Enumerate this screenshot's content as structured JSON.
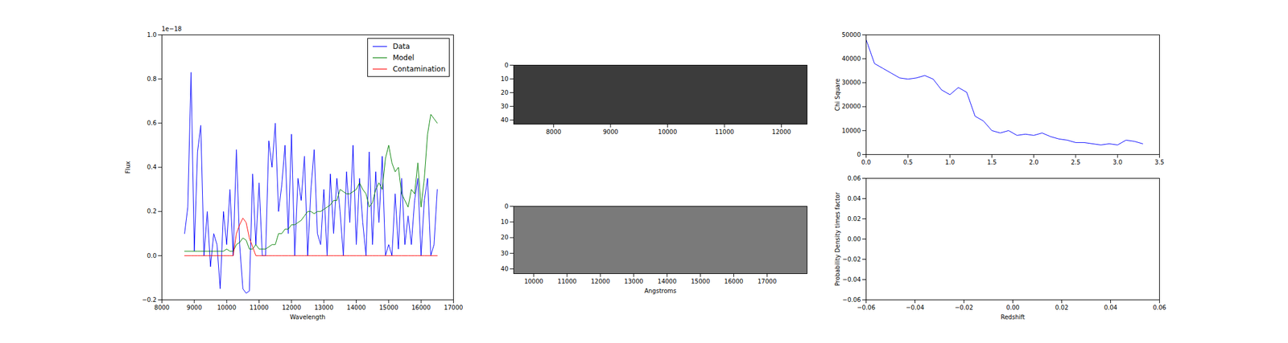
{
  "chart_data": [
    {
      "type": "line",
      "xlabel": "Wavelength",
      "ylabel": "Flux",
      "annotation": "1e−18",
      "legend": "upper right",
      "xlim": [
        8000,
        17000
      ],
      "ylim": [
        -0.2,
        1.0
      ],
      "xticks": [
        8000,
        9000,
        10000,
        11000,
        12000,
        13000,
        14000,
        15000,
        16000,
        17000
      ],
      "yticks": [
        {
          "value": -0.2,
          "label": "−0.2"
        },
        {
          "value": 0,
          "label": "0.0"
        },
        0.2,
        0.4,
        0.6,
        0.8,
        {
          "value": 1.0,
          "label": "1.0"
        }
      ],
      "x": [
        8700,
        8800,
        8900,
        9000,
        9100,
        9200,
        9300,
        9400,
        9500,
        9600,
        9700,
        9800,
        9900,
        10000,
        10100,
        10200,
        10300,
        10400,
        10500,
        10600,
        10700,
        10800,
        10900,
        11000,
        11100,
        11200,
        11300,
        11400,
        11500,
        11600,
        11700,
        11800,
        11900,
        12000,
        12100,
        12200,
        12300,
        12400,
        12500,
        12600,
        12700,
        12800,
        12900,
        13000,
        13100,
        13200,
        13300,
        13400,
        13500,
        13600,
        13700,
        13800,
        13900,
        14000,
        14100,
        14200,
        14300,
        14400,
        14500,
        14600,
        14700,
        14800,
        14900,
        15000,
        15100,
        15200,
        15300,
        15400,
        15500,
        15600,
        15700,
        15800,
        15900,
        16000,
        16100,
        16200,
        16300,
        16400,
        16500
      ],
      "series": [
        {
          "name": "Data",
          "color": "#0000ff",
          "values": [
            0.1,
            0.22,
            0.83,
            0.02,
            0.47,
            0.59,
            0.0,
            0.2,
            -0.05,
            0.1,
            0.05,
            -0.15,
            0.2,
            0.05,
            0.3,
            0.0,
            0.48,
            0.05,
            -0.15,
            -0.17,
            -0.16,
            0.37,
            0.05,
            0.33,
            0.0,
            0.0,
            0.52,
            0.4,
            0.6,
            0.2,
            0.32,
            0.5,
            0.1,
            0.55,
            0.0,
            0.35,
            0.25,
            0.45,
            0.0,
            0.3,
            0.48,
            0.1,
            0.05,
            0.3,
            0.0,
            0.37,
            0.1,
            0.35,
            0.2,
            0.0,
            0.38,
            0.15,
            0.5,
            0.05,
            0.35,
            0.15,
            0.0,
            0.47,
            0.05,
            0.38,
            0.15,
            0.45,
            0.0,
            0.05,
            0.0,
            0.28,
            0.03,
            0.35,
            0.05,
            0.18,
            0.05,
            0.25,
            0.35,
            0.0,
            0.25,
            0.35,
            0.0,
            0.05,
            0.3
          ]
        },
        {
          "name": "Model",
          "color": "#008000",
          "values": [
            0.02,
            0.02,
            0.02,
            0.02,
            0.02,
            0.02,
            0.02,
            0.02,
            0.02,
            0.02,
            0.02,
            0.02,
            0.02,
            0.03,
            0.02,
            0.02,
            0.05,
            0.06,
            0.08,
            0.07,
            0.03,
            0.03,
            0.05,
            0.03,
            0.03,
            0.03,
            0.04,
            0.05,
            0.05,
            0.1,
            0.1,
            0.12,
            0.12,
            0.14,
            0.14,
            0.15,
            0.16,
            0.18,
            0.2,
            0.2,
            0.19,
            0.2,
            0.2,
            0.21,
            0.22,
            0.23,
            0.25,
            0.25,
            0.3,
            0.29,
            0.28,
            0.28,
            0.29,
            0.3,
            0.33,
            0.3,
            0.28,
            0.22,
            0.24,
            0.3,
            0.33,
            0.3,
            0.44,
            0.5,
            0.42,
            0.38,
            0.4,
            0.28,
            0.25,
            0.22,
            0.3,
            0.28,
            0.42,
            0.22,
            0.35,
            0.55,
            0.64,
            0.62,
            0.6
          ]
        },
        {
          "name": "Contamination",
          "color": "#ff0000",
          "values": [
            0,
            0,
            0,
            0,
            0,
            0,
            0,
            0,
            0,
            0,
            0,
            0,
            0,
            0,
            0,
            0,
            0.1,
            0.14,
            0.17,
            0.15,
            0.08,
            0.04,
            0,
            0,
            0,
            0,
            0,
            0,
            0,
            0,
            0,
            0,
            0,
            0,
            0,
            0,
            0,
            0,
            0,
            0,
            0,
            0,
            0,
            0,
            0,
            0,
            0,
            0,
            0,
            0,
            0,
            0,
            0,
            0,
            0,
            0,
            0,
            0,
            0,
            0,
            0,
            0,
            0,
            0,
            0,
            0,
            0,
            0,
            0,
            0,
            0,
            0,
            0,
            0,
            0,
            0,
            0,
            0,
            0
          ]
        }
      ]
    },
    {
      "type": "image",
      "color": "#3c3c3c",
      "xlim": [
        7300,
        12450
      ],
      "ylim": [
        43,
        0
      ],
      "xticks": [
        8000,
        9000,
        10000,
        11000,
        12000
      ],
      "yticks": [
        0,
        10,
        20,
        30,
        40
      ]
    },
    {
      "type": "image",
      "color": "#7a7a7a",
      "xlabel": "Angstroms",
      "xlim": [
        9400,
        18200
      ],
      "ylim": [
        43,
        0
      ],
      "xticks": [
        10000,
        11000,
        12000,
        13000,
        14000,
        15000,
        16000,
        17000
      ],
      "yticks": [
        0,
        10,
        20,
        30,
        40
      ]
    },
    {
      "type": "line",
      "ylabel": "Chi Square",
      "color": "#0000ff",
      "xlim": [
        0,
        3.5
      ],
      "ylim": [
        0,
        50000
      ],
      "xticks": [
        {
          "value": 0,
          "label": "0.0"
        },
        0.5,
        {
          "value": 1,
          "label": "1.0"
        },
        1.5,
        {
          "value": 2,
          "label": "2.0"
        },
        2.5,
        {
          "value": 3,
          "label": "3.0"
        },
        3.5
      ],
      "yticks": [
        0,
        10000,
        20000,
        30000,
        40000,
        50000
      ],
      "x": [
        0.0,
        0.1,
        0.2,
        0.3,
        0.4,
        0.5,
        0.6,
        0.7,
        0.8,
        0.9,
        1.0,
        1.1,
        1.2,
        1.3,
        1.4,
        1.5,
        1.6,
        1.7,
        1.8,
        1.9,
        2.0,
        2.1,
        2.2,
        2.3,
        2.4,
        2.5,
        2.6,
        2.7,
        2.8,
        2.9,
        3.0,
        3.1,
        3.2,
        3.3
      ],
      "values": [
        48000,
        38000,
        36000,
        34000,
        32000,
        31500,
        32000,
        33000,
        31500,
        27000,
        25000,
        28000,
        26000,
        16000,
        14000,
        10000,
        9000,
        10000,
        8000,
        8500,
        8000,
        9000,
        7500,
        6500,
        6000,
        5000,
        5000,
        4500,
        4000,
        4500,
        4000,
        6000,
        5500,
        4500
      ]
    },
    {
      "type": "line",
      "xlabel": "Redshift",
      "ylabel": "Probability Density times factor",
      "xlim": [
        -0.06,
        0.06
      ],
      "ylim": [
        -0.06,
        0.06
      ],
      "xticks": [
        {
          "value": -0.06,
          "label": "−0.06"
        },
        {
          "value": -0.04,
          "label": "−0.04"
        },
        {
          "value": -0.02,
          "label": "−0.02"
        },
        {
          "value": 0,
          "label": "0.00"
        },
        0.02,
        0.04,
        0.06
      ],
      "yticks": [
        {
          "value": -0.06,
          "label": "−0.06"
        },
        {
          "value": -0.04,
          "label": "−0.04"
        },
        {
          "value": -0.02,
          "label": "−0.02"
        },
        {
          "value": 0,
          "label": "0.00"
        },
        0.02,
        0.04,
        0.06
      ],
      "series": []
    }
  ]
}
